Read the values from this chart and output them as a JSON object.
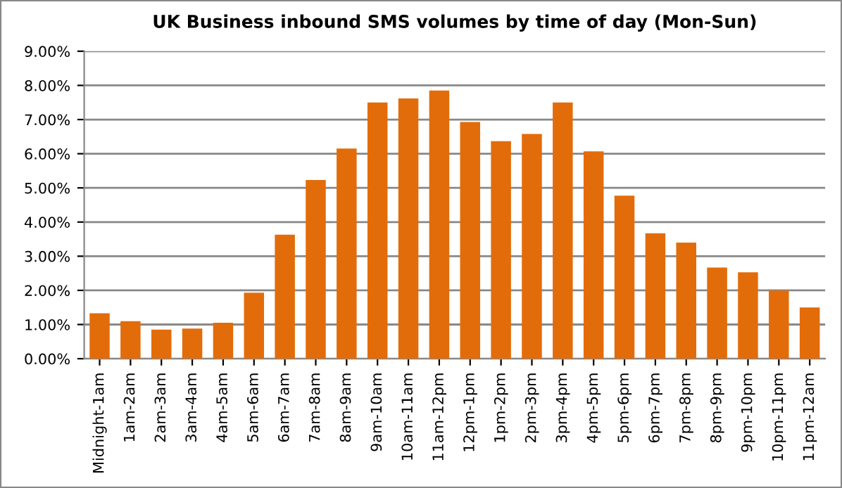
{
  "chart_data": {
    "type": "bar",
    "title": "UK Business inbound SMS volumes by time of day (Mon-Sun)",
    "categories": [
      "Midnight-1am",
      "1am-2am",
      "2am-3am",
      "3am-4am",
      "4am-5am",
      "5am-6am",
      "6am-7am",
      "7am-8am",
      "8am-9am",
      "9am-10am",
      "10am-11am",
      "11am-12pm",
      "12pm-1pm",
      "1pm-2pm",
      "2pm-3pm",
      "3pm-4pm",
      "4pm-5pm",
      "5pm-6pm",
      "6pm-7pm",
      "7pm-8pm",
      "8pm-9pm",
      "9pm-10pm",
      "10pm-11pm",
      "11pm-12am"
    ],
    "values": [
      1.33,
      1.1,
      0.85,
      0.88,
      1.05,
      1.93,
      3.63,
      5.23,
      6.15,
      7.5,
      7.62,
      7.85,
      6.93,
      6.37,
      6.58,
      7.5,
      6.07,
      4.77,
      3.67,
      3.4,
      2.67,
      2.53,
      2.0,
      1.5
    ],
    "color": "#e36c0a",
    "ylim": [
      0,
      9
    ],
    "yticks": [
      {
        "value": 0,
        "label": "0.00%"
      },
      {
        "value": 1,
        "label": "1.00%"
      },
      {
        "value": 2,
        "label": "2.00%"
      },
      {
        "value": 3,
        "label": "3.00%"
      },
      {
        "value": 4,
        "label": "4.00%"
      },
      {
        "value": 5,
        "label": "5.00%"
      },
      {
        "value": 6,
        "label": "6.00%"
      },
      {
        "value": 7,
        "label": "7.00%"
      },
      {
        "value": 8,
        "label": "8.00%"
      },
      {
        "value": 9,
        "label": "9.00%"
      }
    ],
    "grid": "y"
  }
}
